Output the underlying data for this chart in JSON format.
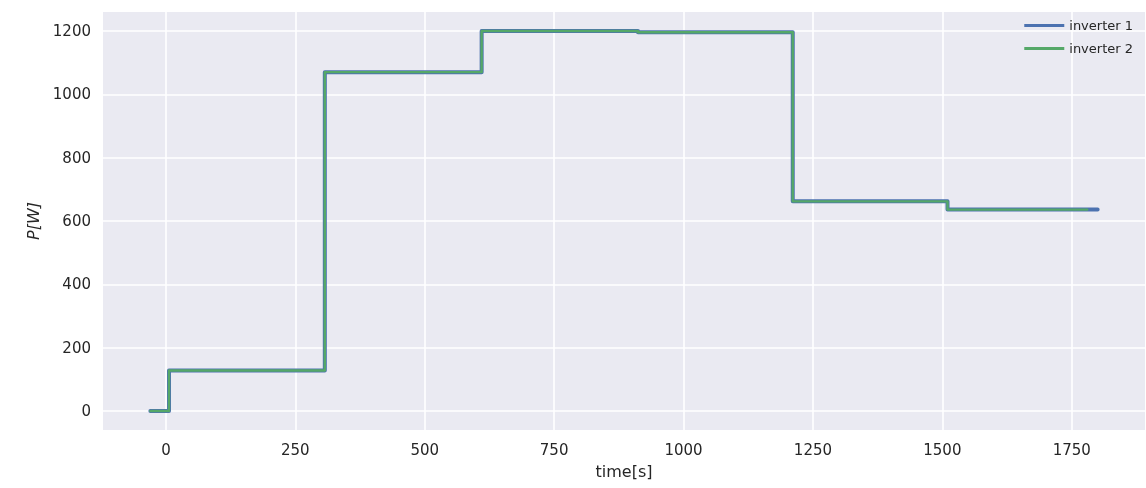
{
  "chart_data": {
    "type": "step",
    "xlabel": "time[s]",
    "ylabel": "P[W]",
    "series": [
      {
        "name": "inverter 1",
        "color": "#4c72b0",
        "x": [
          -30,
          6,
          307,
          610,
          912,
          1211,
          1510,
          1800
        ],
        "values": [
          0,
          128,
          1070,
          1200,
          1196,
          662,
          636,
          636
        ]
      },
      {
        "name": "inverter 2",
        "color": "#55a868",
        "x": [
          -30,
          6,
          307,
          610,
          912,
          1211,
          1510,
          1780
        ],
        "values": [
          0,
          128,
          1070,
          1200,
          1196,
          662,
          636,
          636
        ]
      }
    ],
    "xlim": [
      -121.5,
      1891.5
    ],
    "ylim": [
      -60,
      1260
    ],
    "xticks": [
      0,
      250,
      500,
      750,
      1000,
      1250,
      1500,
      1750
    ],
    "yticks": [
      0,
      200,
      400,
      600,
      800,
      1000,
      1200
    ],
    "grid": true,
    "legend": "top right",
    "line_style": "solid"
  }
}
